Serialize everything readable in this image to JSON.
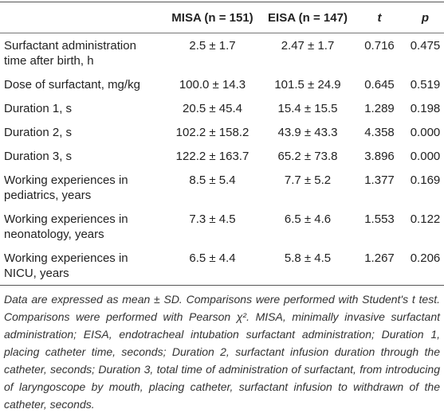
{
  "table": {
    "header": [
      "",
      "MISA (n = 151)",
      "EISA (n = 147)",
      "t",
      "p"
    ],
    "rows": [
      [
        "Surfactant administration time after birth, h",
        "2.5 ± 1.7",
        "2.47 ± 1.7",
        "0.716",
        "0.475"
      ],
      [
        "Dose of surfactant, mg/kg",
        "100.0 ± 14.3",
        "101.5 ± 24.9",
        "0.645",
        "0.519"
      ],
      [
        "Duration 1, s",
        "20.5 ± 45.4",
        "15.4 ± 15.5",
        "1.289",
        "0.198"
      ],
      [
        "Duration 2, s",
        "102.2 ± 158.2",
        "43.9 ± 43.3",
        "4.358",
        "0.000"
      ],
      [
        "Duration 3, s",
        "122.2 ± 163.7",
        "65.2 ± 73.8",
        "3.896",
        "0.000"
      ],
      [
        "Working experiences in pediatrics, years",
        "8.5 ± 5.4",
        "7.7 ± 5.2",
        "1.377",
        "0.169"
      ],
      [
        "Working experiences in neonatology, years",
        "7.3 ± 4.5",
        "6.5 ± 4.6",
        "1.553",
        "0.122"
      ],
      [
        "Working experiences in NICU, years",
        "6.5 ± 4.4",
        "5.8 ± 4.5",
        "1.267",
        "0.206"
      ]
    ]
  },
  "footnote": "Data are expressed as mean ± SD. Comparisons were performed with Student's t test. Comparisons were performed with Pearson χ². MISA, minimally invasive surfactant administration; EISA, endotracheal intubation surfactant administration; Duration 1, placing catheter time, seconds; Duration 2, surfactant infusion duration through the catheter, seconds; Duration 3, total time of administration of surfactant, from introducing of laryngoscope by mouth, placing catheter, surfactant infusion to withdrawn of the catheter, seconds."
}
